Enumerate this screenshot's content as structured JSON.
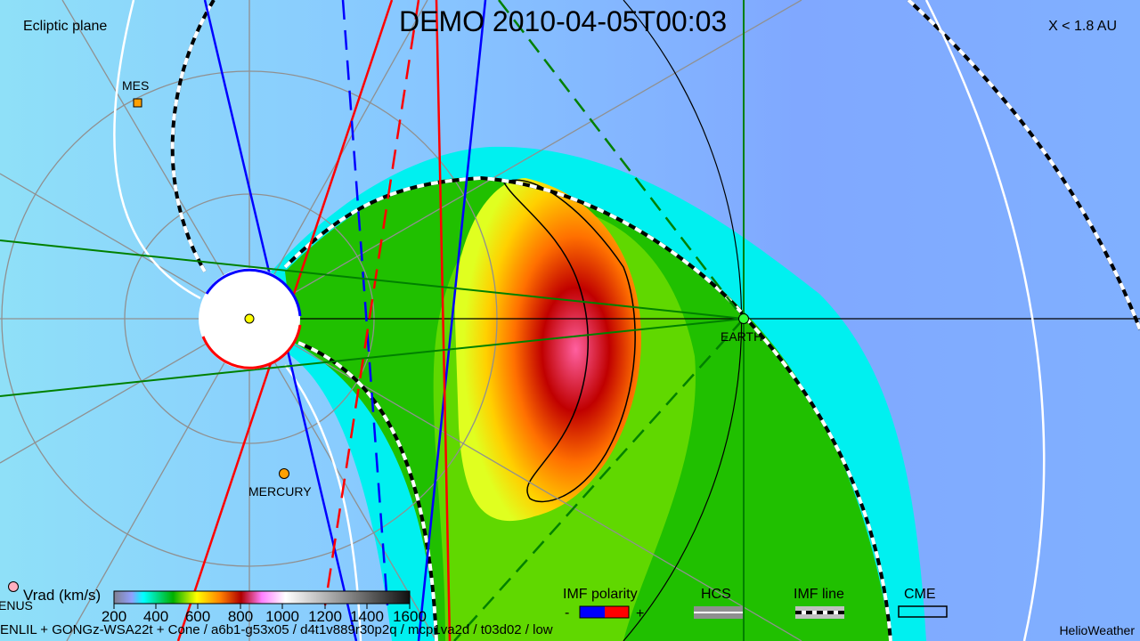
{
  "title": "DEMO   2010-04-05T00:03",
  "plane_label": "Ecliptic plane",
  "range_label": "X < 1.8 AU",
  "bodies": [
    {
      "name": "MES",
      "color": "#ffa000",
      "marker": "square"
    },
    {
      "name": "MERCURY",
      "color": "#ffa000",
      "marker": "circle"
    },
    {
      "name": "EARTH",
      "color": "#33ff33",
      "marker": "circle"
    },
    {
      "name": "ENUS",
      "color": "#ffb0c0",
      "marker": "circle"
    }
  ],
  "colorbar": {
    "label": "Vrad (km/s)",
    "ticks": [
      "200",
      "400",
      "600",
      "800",
      "1000",
      "1200",
      "1400",
      "1600"
    ]
  },
  "legend": {
    "imf_polarity": {
      "label": "IMF polarity",
      "minus": "-",
      "plus": "+",
      "neg_color": "#0000ff",
      "pos_color": "#ff0000"
    },
    "hcs": "HCS",
    "imf_line": "IMF line",
    "cme": "CME"
  },
  "footer": "ENLIL + GONGz-WSA22t + Cone / a6b1-g53x05 / d4t1v889r30p2q / mcp1va2d / t03d02 / low",
  "brand": "HelioWeather"
}
